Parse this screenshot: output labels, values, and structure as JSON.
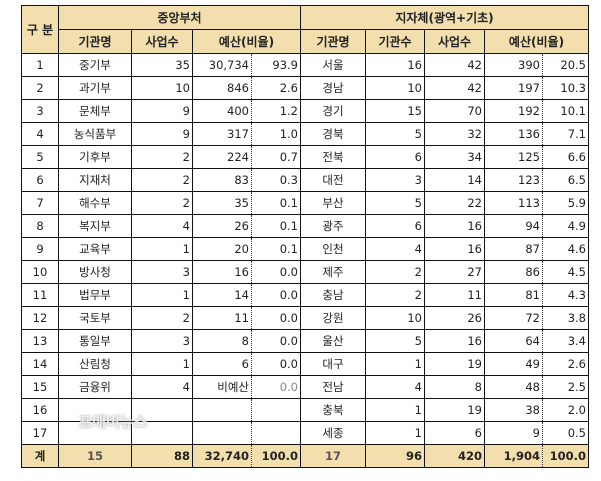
{
  "header": {
    "category": "구 분",
    "central_group": "중앙부처",
    "local_group": "지자체(광역+기초)",
    "central_cols": [
      "기관명",
      "사업수",
      "예산(비율)"
    ],
    "local_cols": [
      "기관명",
      "기관수",
      "사업수",
      "예산(비율)"
    ]
  },
  "rows": [
    {
      "no": "1",
      "c_name": "중기부",
      "c_projects": "35",
      "c_budget": "30,734",
      "c_ratio": "93.9",
      "l_name": "서울",
      "l_orgs": "16",
      "l_projects": "42",
      "l_budget": "390",
      "l_ratio": "20.5"
    },
    {
      "no": "2",
      "c_name": "과기부",
      "c_projects": "10",
      "c_budget": "846",
      "c_ratio": "2.6",
      "l_name": "경남",
      "l_orgs": "10",
      "l_projects": "42",
      "l_budget": "197",
      "l_ratio": "10.3"
    },
    {
      "no": "3",
      "c_name": "문체부",
      "c_projects": "9",
      "c_budget": "400",
      "c_ratio": "1.2",
      "l_name": "경기",
      "l_orgs": "15",
      "l_projects": "70",
      "l_budget": "192",
      "l_ratio": "10.1"
    },
    {
      "no": "4",
      "c_name": "농식품부",
      "c_projects": "9",
      "c_budget": "317",
      "c_ratio": "1.0",
      "l_name": "경북",
      "l_orgs": "5",
      "l_projects": "32",
      "l_budget": "136",
      "l_ratio": "7.1"
    },
    {
      "no": "5",
      "c_name": "기후부",
      "c_projects": "2",
      "c_budget": "224",
      "c_ratio": "0.7",
      "l_name": "전북",
      "l_orgs": "6",
      "l_projects": "34",
      "l_budget": "125",
      "l_ratio": "6.6"
    },
    {
      "no": "6",
      "c_name": "지재처",
      "c_projects": "2",
      "c_budget": "83",
      "c_ratio": "0.3",
      "l_name": "대전",
      "l_orgs": "3",
      "l_projects": "14",
      "l_budget": "123",
      "l_ratio": "6.5"
    },
    {
      "no": "7",
      "c_name": "해수부",
      "c_projects": "2",
      "c_budget": "35",
      "c_ratio": "0.1",
      "l_name": "부산",
      "l_orgs": "5",
      "l_projects": "22",
      "l_budget": "113",
      "l_ratio": "5.9"
    },
    {
      "no": "8",
      "c_name": "복지부",
      "c_projects": "4",
      "c_budget": "26",
      "c_ratio": "0.1",
      "l_name": "광주",
      "l_orgs": "6",
      "l_projects": "16",
      "l_budget": "94",
      "l_ratio": "4.9"
    },
    {
      "no": "9",
      "c_name": "교육부",
      "c_projects": "1",
      "c_budget": "20",
      "c_ratio": "0.1",
      "l_name": "인천",
      "l_orgs": "4",
      "l_projects": "16",
      "l_budget": "87",
      "l_ratio": "4.6"
    },
    {
      "no": "10",
      "c_name": "방사청",
      "c_projects": "3",
      "c_budget": "16",
      "c_ratio": "0.0",
      "l_name": "제주",
      "l_orgs": "2",
      "l_projects": "27",
      "l_budget": "86",
      "l_ratio": "4.5"
    },
    {
      "no": "11",
      "c_name": "법무부",
      "c_projects": "1",
      "c_budget": "14",
      "c_ratio": "0.0",
      "l_name": "충남",
      "l_orgs": "2",
      "l_projects": "11",
      "l_budget": "81",
      "l_ratio": "4.3"
    },
    {
      "no": "12",
      "c_name": "국토부",
      "c_projects": "2",
      "c_budget": "11",
      "c_ratio": "0.0",
      "l_name": "강원",
      "l_orgs": "10",
      "l_projects": "26",
      "l_budget": "72",
      "l_ratio": "3.8"
    },
    {
      "no": "13",
      "c_name": "통일부",
      "c_projects": "3",
      "c_budget": "8",
      "c_ratio": "0.0",
      "l_name": "울산",
      "l_orgs": "5",
      "l_projects": "16",
      "l_budget": "64",
      "l_ratio": "3.4"
    },
    {
      "no": "14",
      "c_name": "산림청",
      "c_projects": "1",
      "c_budget": "6",
      "c_ratio": "0.0",
      "l_name": "대구",
      "l_orgs": "1",
      "l_projects": "19",
      "l_budget": "49",
      "l_ratio": "2.6"
    },
    {
      "no": "15",
      "c_name": "금융위",
      "c_projects": "4",
      "c_budget": "비예산",
      "c_ratio": "0.0",
      "l_name": "전남",
      "l_orgs": "4",
      "l_projects": "8",
      "l_budget": "48",
      "l_ratio": "2.5"
    },
    {
      "no": "16",
      "c_name": "",
      "c_projects": "",
      "c_budget": "",
      "c_ratio": "",
      "l_name": "충북",
      "l_orgs": "1",
      "l_projects": "19",
      "l_budget": "38",
      "l_ratio": "2.0"
    },
    {
      "no": "17",
      "c_name": "",
      "c_projects": "",
      "c_budget": "",
      "c_ratio": "",
      "l_name": "세종",
      "l_orgs": "1",
      "l_projects": "6",
      "l_budget": "9",
      "l_ratio": "0.5"
    }
  ],
  "total": {
    "label": "계",
    "c_count": "15",
    "c_projects": "88",
    "c_budget": "32,740",
    "c_ratio": "100.0",
    "l_count": "17",
    "l_orgs": "96",
    "l_projects": "420",
    "l_budget": "1,904",
    "l_ratio": "100.0"
  },
  "watermark": "포애버뉴스",
  "colors": {
    "header_bg": "#f3dfae",
    "border": "#111111"
  }
}
